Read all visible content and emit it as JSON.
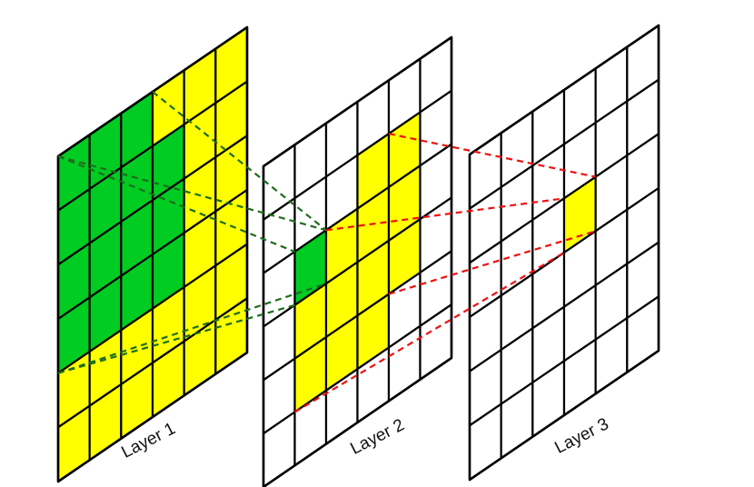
{
  "colors": {
    "green_fill": "#00CC22",
    "yellow_fill": "#FFFF00",
    "grid_line": "#000000",
    "green_connector": "#1E6E1E",
    "red_connector": "#EE1111",
    "empty_cell": "#FFFFFF"
  },
  "grid_size": 6,
  "layers": [
    {
      "label": "Layer 1",
      "cells": [
        "GGGYYY",
        "GGGGYY",
        "GGGGYY",
        "GGGGYY",
        "YYYYYY",
        "YYYYYY"
      ]
    },
    {
      "label": "Layer 2",
      "cells": [
        "WWWWWW",
        "WWWYYW",
        "WGYYYW",
        "WYYYYW",
        "WYYYWW",
        "WWWWWW"
      ]
    },
    {
      "label": "Layer 3",
      "cells": [
        "WWWWWW",
        "WWWWWW",
        "WWWYWW",
        "WWWWWW",
        "WWWWWW",
        "WWWWWW"
      ]
    }
  ],
  "connections": [
    {
      "color": "green",
      "from": "Layer 1 green region",
      "to": "Layer 2 green cell"
    },
    {
      "color": "red",
      "from": "Layer 2 yellow region",
      "to": "Layer 3 yellow cell"
    }
  ]
}
